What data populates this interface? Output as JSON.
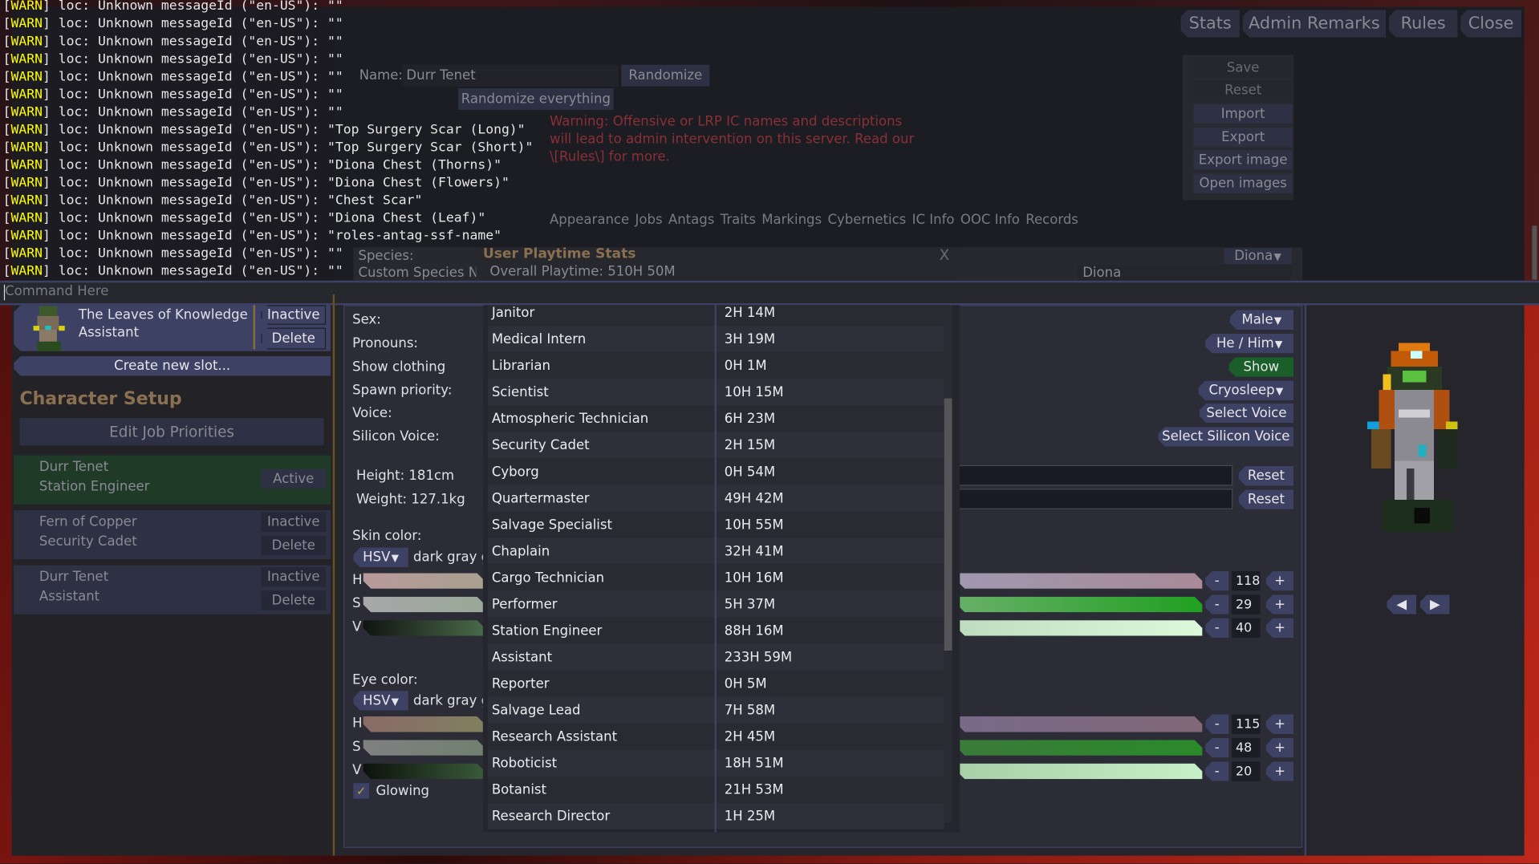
{
  "window": {
    "title": "Character Setup",
    "top_buttons": [
      "Stats",
      "Admin Remarks",
      "Rules",
      "Close"
    ]
  },
  "background_ui": {
    "edit_job_priorities": "Edit Job Priorities",
    "slots": [
      {
        "name": "Durr Tenet",
        "job": "Station Engineer",
        "status": "Active"
      },
      {
        "name": "Fern of Copper",
        "job": "Security Cadet",
        "status": "Inactive",
        "delete": "Delete"
      },
      {
        "name": "Durr Tenet",
        "job": "Assistant",
        "status": "Inactive",
        "delete": "Delete"
      }
    ],
    "name_label": "Name:",
    "name_value": "Durr Tenet",
    "randomize": "Randomize",
    "randomize_everything": "Randomize everything",
    "warning": [
      "Warning: Offensive or LRP IC names and descriptions",
      "will lead to admin intervention on this server. Read our",
      "\\[Rules\\] for more."
    ],
    "side_buttons": [
      "Save",
      "Reset",
      "Import",
      "Export",
      "Export image",
      "Open images"
    ],
    "tabs": [
      "Appearance",
      "Jobs",
      "Antags",
      "Traits",
      "Markings",
      "Cybernetics",
      "IC Info",
      "OOC Info",
      "Records"
    ],
    "species_label": "Species:",
    "species_value": "Diona",
    "custom_species_label": "Custom Species Nam",
    "custom_species_value": "Diona"
  },
  "console": {
    "prefix_open": "[",
    "prefix_tag": "WARN",
    "prefix_close": "]",
    "lines": [
      " loc: Unknown messageId (\"en-US\"): \"\"",
      " loc: Unknown messageId (\"en-US\"): \"\"",
      " loc: Unknown messageId (\"en-US\"): \"\"",
      " loc: Unknown messageId (\"en-US\"): \"\"",
      " loc: Unknown messageId (\"en-US\"): \"\"",
      " loc: Unknown messageId (\"en-US\"): \"\"",
      " loc: Unknown messageId (\"en-US\"): \"\"",
      " loc: Unknown messageId (\"en-US\"): \"Top Surgery Scar (Long)\"",
      " loc: Unknown messageId (\"en-US\"): \"Top Surgery Scar (Short)\"",
      " loc: Unknown messageId (\"en-US\"): \"Diona Chest (Thorns)\"",
      " loc: Unknown messageId (\"en-US\"): \"Diona Chest (Flowers)\"",
      " loc: Unknown messageId (\"en-US\"): \"Chest Scar\"",
      " loc: Unknown messageId (\"en-US\"): \"Diona Chest (Leaf)\"",
      " loc: Unknown messageId (\"en-US\"): \"roles-antag-ssf-name\"",
      " loc: Unknown messageId (\"en-US\"): \"\"",
      " loc: Unknown messageId (\"en-US\"): \"\""
    ],
    "command_placeholder": "Command Here"
  },
  "slot_list": {
    "current_slot": {
      "name": "The Leaves of Knowledge",
      "job": "Assistant",
      "status": "Inactive",
      "delete": "Delete"
    },
    "create_new": "Create new slot..."
  },
  "appearance": {
    "labels": {
      "sex": "Sex:",
      "pronouns": "Pronouns:",
      "show_clothing": "Show clothing",
      "spawn_priority": "Spawn priority:",
      "voice": "Voice:",
      "silicon_voice": "Silicon Voice:",
      "height": "Height: 181cm",
      "weight": "Weight: 127.1kg",
      "skin_color": "Skin color:",
      "eye_color": "Eye color:",
      "glowing": "Glowing"
    },
    "values": {
      "sex": "Male",
      "pronouns": "He / Him",
      "show_clothing": "Show",
      "spawn_priority": "Cryosleep",
      "voice": "Select Voice",
      "silicon_voice": "Select Silicon Voice",
      "reset": "Reset"
    },
    "skin": {
      "mode": "HSV",
      "color_name": "dark gray g",
      "h": 118,
      "s": 29,
      "v": 40
    },
    "eye": {
      "mode": "HSV",
      "color_name": "dark gray g",
      "h": 115,
      "s": 48,
      "v": 20
    },
    "glowing_checked": true,
    "channel_labels": [
      "H",
      "S",
      "V"
    ],
    "stepper": {
      "minus": "-",
      "plus": "+"
    },
    "show_color": "#1a5e2a"
  },
  "playtime": {
    "title": "User Playtime Stats",
    "close": "X",
    "overall": "Overall Playtime: 510H 50M",
    "scroll_fraction": 0.35,
    "rows": [
      [
        "Janitor",
        "2H 14M"
      ],
      [
        "Medical Intern",
        "3H 19M"
      ],
      [
        "Librarian",
        "0H 1M"
      ],
      [
        "Scientist",
        "10H 15M"
      ],
      [
        "Atmospheric Technician",
        "6H 23M"
      ],
      [
        "Security Cadet",
        "2H 15M"
      ],
      [
        "Cyborg",
        "0H 54M"
      ],
      [
        "Quartermaster",
        "49H 42M"
      ],
      [
        "Salvage Specialist",
        "10H 55M"
      ],
      [
        "Chaplain",
        "32H 41M"
      ],
      [
        "Cargo Technician",
        "10H 16M"
      ],
      [
        "Performer",
        "5H 37M"
      ],
      [
        "Station Engineer",
        "88H 16M"
      ],
      [
        "Assistant",
        "233H 59M"
      ],
      [
        "Reporter",
        "0H 5M"
      ],
      [
        "Salvage Lead",
        "7H 58M"
      ],
      [
        "Research Assistant",
        "2H 45M"
      ],
      [
        "Roboticist",
        "18H 51M"
      ],
      [
        "Botanist",
        "21H 53M"
      ],
      [
        "Research Director",
        "1H 25M"
      ]
    ]
  },
  "preview": {
    "prev_icon": "triangle-left-icon",
    "next_icon": "triangle-right-icon"
  }
}
